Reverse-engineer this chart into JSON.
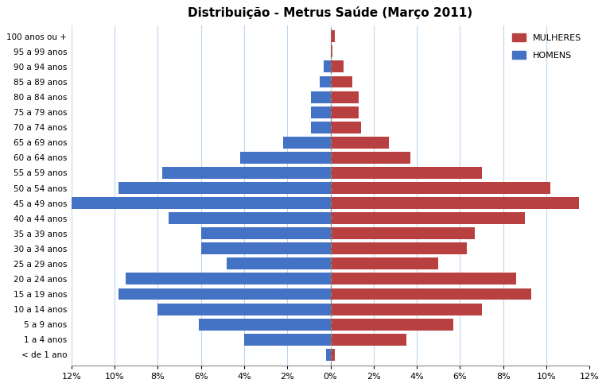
{
  "title": "Distribuição - Metrus Saúde (Março 2011)",
  "age_groups": [
    "< de 1 ano",
    "1 a 4 anos",
    "5 a 9 anos",
    "10 a 14 anos",
    "15 a 19 anos",
    "20 a 24 anos",
    "25 a 29 anos",
    "30 a 34 anos",
    "35 a 39 anos",
    "40 a 44 anos",
    "45 a 49 anos",
    "50 a 54 anos",
    "55 a 59 anos",
    "60 a 64 anos",
    "65 a 69 anos",
    "70 a 74 anos",
    "75 a 79 anos",
    "80 a 84 anos",
    "85 a 89 anos",
    "90 a 94 anos",
    "95 a 99 anos",
    "100 anos ou +"
  ],
  "mulheres": [
    0.2,
    3.5,
    5.7,
    7.0,
    9.3,
    8.6,
    5.0,
    6.3,
    6.7,
    9.0,
    11.5,
    10.2,
    7.0,
    3.7,
    2.7,
    1.4,
    1.3,
    1.3,
    1.0,
    0.6,
    0.1,
    0.2
  ],
  "homens": [
    0.2,
    4.0,
    6.1,
    8.0,
    9.8,
    9.5,
    4.8,
    6.0,
    6.0,
    7.5,
    12.0,
    9.8,
    7.8,
    4.2,
    2.2,
    0.9,
    0.9,
    0.9,
    0.5,
    0.3,
    0.0,
    0.0
  ],
  "xlim": 12,
  "mulheres_color": "#B94040",
  "homens_color": "#4472C4",
  "background_color": "#FFFFFF",
  "grid_color": "#BDD7EE",
  "legend_mulheres": "MULHERES",
  "legend_homens": "HOMENS",
  "tick_positions": [
    -12,
    -10,
    -8,
    -6,
    -4,
    -2,
    0,
    2,
    4,
    6,
    8,
    10,
    12
  ],
  "tick_labels": [
    "12%",
    "10%",
    "8%",
    "6%",
    "4%",
    "2%",
    "0%",
    "2%",
    "4%",
    "6%",
    "8%",
    "10%",
    "12%"
  ]
}
